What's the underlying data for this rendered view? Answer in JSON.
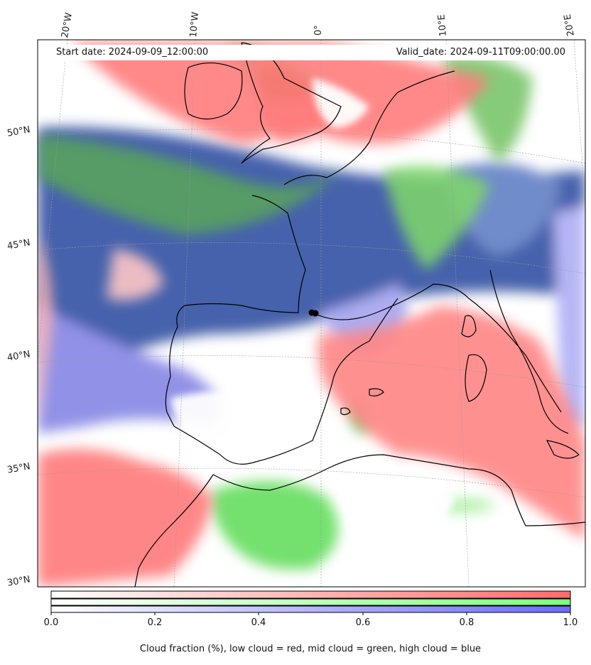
{
  "header": {
    "start_date": "Start date: 2024-09-09_12:00:00",
    "valid_date": "Valid_date: 2024-09-11T09:00:00.00"
  },
  "longitude_labels": [
    "20°W",
    "10°W",
    "0°",
    "10°E",
    "20°E"
  ],
  "latitude_labels": [
    "50°N",
    "45°N",
    "40°N",
    "35°N",
    "30°N"
  ],
  "colorbar": {
    "ticks": [
      "0.0",
      "0.2",
      "0.4",
      "0.6",
      "0.8",
      "1.0"
    ],
    "low_color": "#ff7070",
    "mid_color": "#80ff80",
    "high_color": "#7070ff"
  },
  "caption": "Cloud fraction (%), low cloud = red, mid cloud = green, high cloud = blue",
  "palette": {
    "low": "#ff8080",
    "mid": "#6ed35a",
    "high": "#3c5aa8",
    "coast": "#000000"
  }
}
